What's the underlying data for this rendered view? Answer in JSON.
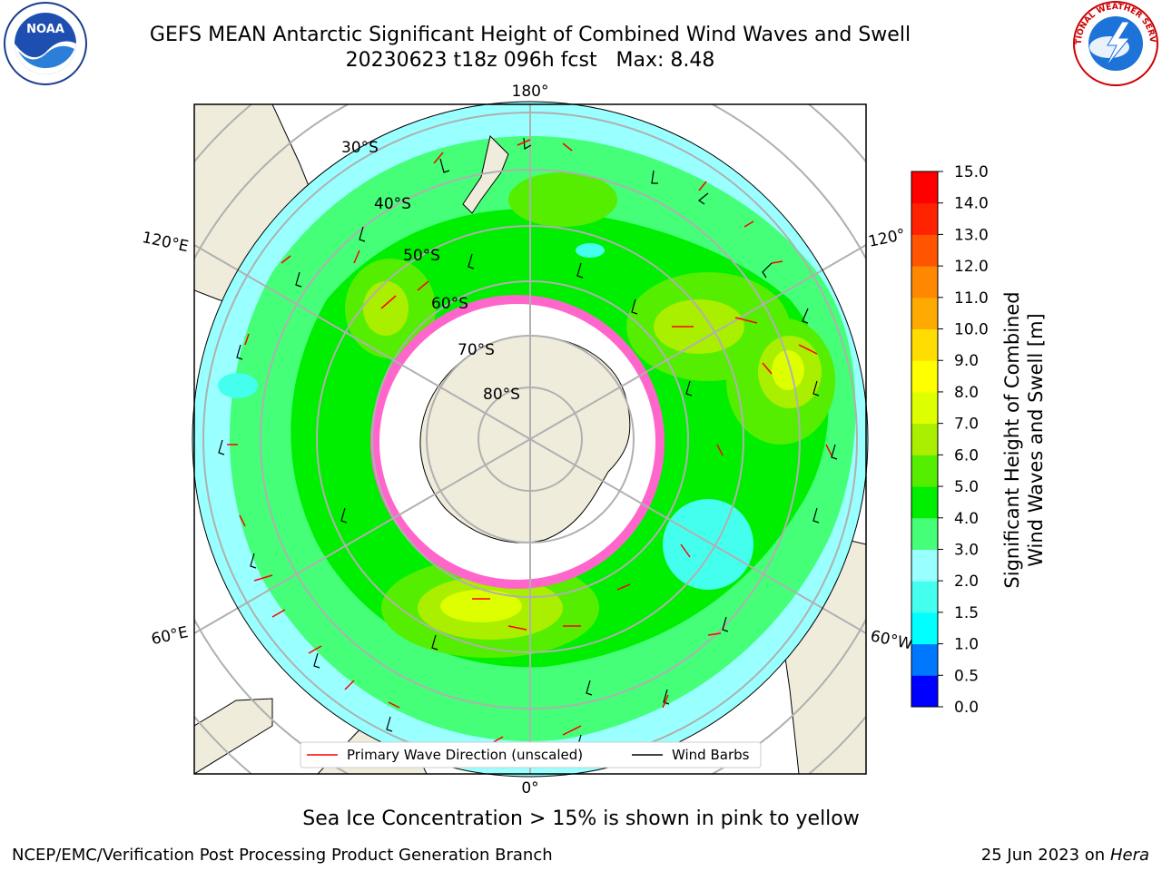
{
  "title_line1": "GEFS MEAN Antarctic Significant Height of Combined Wind Waves and Swell",
  "title_line2": "20230623 t18z 096h fcst   Max: 8.48",
  "logos": {
    "left": "NOAA",
    "right": "NATIONAL WEATHER SERVICE"
  },
  "longitude_labels": {
    "top": "180°",
    "bottom": "0°",
    "left_upper": "120°E",
    "left_lower": "60°E",
    "right_upper": "120°",
    "right_lower": "60°W"
  },
  "latitude_labels": [
    "30°S",
    "40°S",
    "50°S",
    "60°S",
    "70°S",
    "80°S"
  ],
  "legend": {
    "wave_label": "Primary Wave Direction (unscaled)",
    "wind_label": "Wind Barbs",
    "wave_color": "#ff0000",
    "wind_color": "#000000"
  },
  "colorbar": {
    "label_line1": "Significant Height of Combined",
    "label_line2": "Wind Waves and Swell [m]",
    "ticks": [
      "0.0",
      "0.5",
      "1.0",
      "1.5",
      "2.0",
      "3.0",
      "4.0",
      "5.0",
      "6.0",
      "7.0",
      "8.0",
      "9.0",
      "10.0",
      "11.0",
      "12.0",
      "13.0",
      "14.0",
      "15.0"
    ],
    "colors": [
      "#0000ff",
      "#0077ff",
      "#00ffff",
      "#44ffee",
      "#99ffff",
      "#44ff77",
      "#00ee00",
      "#55ee00",
      "#aaee00",
      "#ddff00",
      "#ffff00",
      "#ffdd00",
      "#ffaa00",
      "#ff8800",
      "#ff5500",
      "#ff2200",
      "#ff0000"
    ]
  },
  "sea_ice_note": "Sea Ice Concentration > 15% is shown in pink to yellow",
  "footer_left": "NCEP/EMC/Verification Post Processing Product Generation Branch",
  "footer_date": "25 Jun 2023 on",
  "footer_system": "Hera"
}
